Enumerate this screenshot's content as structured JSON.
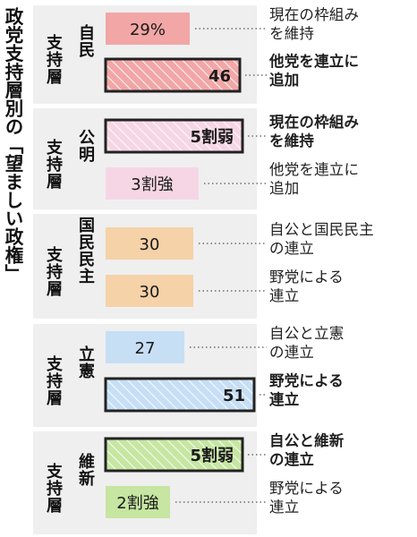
{
  "title": "政党支持層別の「望ましい政権」",
  "colors": {
    "bg": "#ffffff",
    "panel": "#efefef",
    "border": "#222222",
    "text": "#1f1f1f",
    "leader": "#555555"
  },
  "chart_data": {
    "type": "bar",
    "unit": "%",
    "groups": [
      {
        "label": "自民支持層",
        "label_lines": [
          "自民",
          "支持層"
        ],
        "color": "#f2a6a6",
        "bars": [
          {
            "display": "29%",
            "value": 29,
            "scenario_lines": [
              "現在の枠組み",
              "を維持"
            ],
            "highlighted": false
          },
          {
            "display": "46",
            "value": 46,
            "scenario_lines": [
              "他党を連立に",
              "追加"
            ],
            "highlighted": true
          }
        ]
      },
      {
        "label": "公明支持層",
        "label_lines": [
          "公明",
          "支持層"
        ],
        "color": "#f6d6e4",
        "bars": [
          {
            "display": "5割弱",
            "value": 47,
            "scenario_lines": [
              "現在の枠組み",
              "を維持"
            ],
            "highlighted": true
          },
          {
            "display": "3割強",
            "value": 32,
            "scenario_lines": [
              "他党を連立に",
              "追加"
            ],
            "highlighted": false
          }
        ]
      },
      {
        "label": "国民民主支持層",
        "label_lines": [
          "国民民主",
          "支持層"
        ],
        "color": "#f5d2a8",
        "bars": [
          {
            "display": "30",
            "value": 30,
            "scenario_lines": [
              "自公と国民民主",
              "の連立"
            ],
            "highlighted": false
          },
          {
            "display": "30",
            "value": 30,
            "scenario_lines": [
              "野党による",
              "連立"
            ],
            "highlighted": false
          }
        ]
      },
      {
        "label": "立憲支持層",
        "label_lines": [
          "立憲",
          "支持層"
        ],
        "color": "#c6dff5",
        "bars": [
          {
            "display": "27",
            "value": 27,
            "scenario_lines": [
              "自公と立憲",
              "の連立"
            ],
            "highlighted": false
          },
          {
            "display": "51",
            "value": 51,
            "scenario_lines": [
              "野党による",
              "連立"
            ],
            "highlighted": true
          }
        ]
      },
      {
        "label": "維新支持層",
        "label_lines": [
          "維新",
          "支持層"
        ],
        "color": "#c6e6a2",
        "bars": [
          {
            "display": "5割弱",
            "value": 47,
            "scenario_lines": [
              "自公と維新",
              "の連立"
            ],
            "highlighted": true
          },
          {
            "display": "2割強",
            "value": 22,
            "scenario_lines": [
              "野党による",
              "連立"
            ],
            "highlighted": false
          }
        ]
      }
    ]
  }
}
